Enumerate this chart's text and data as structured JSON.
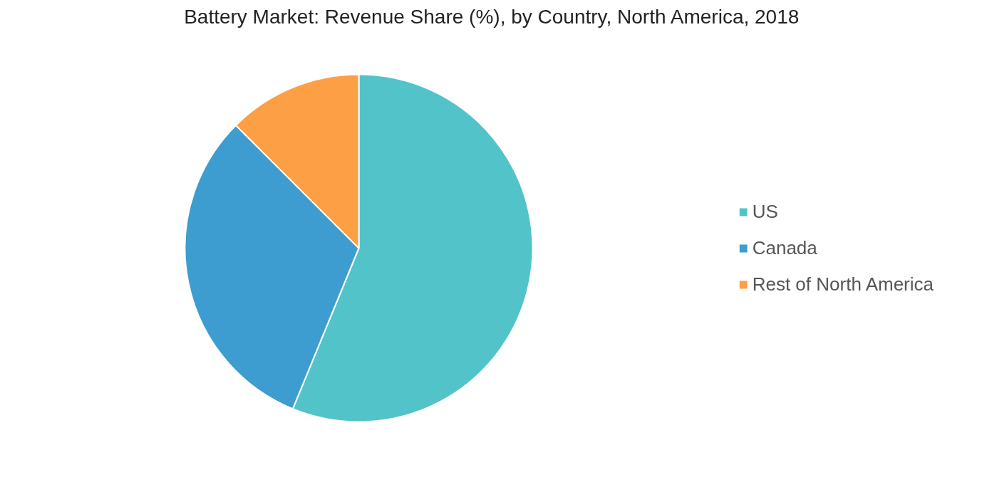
{
  "chart_data": {
    "type": "pie",
    "title": "Battery Market: Revenue Share (%), by Country, North America, 2018",
    "categories": [
      "US",
      "Canada",
      "Rest of North America"
    ],
    "values": [
      56.2,
      31.3,
      12.5
    ],
    "colors": [
      "#52c3c9",
      "#3d9dd0",
      "#fd9f45"
    ],
    "legend": "right"
  }
}
